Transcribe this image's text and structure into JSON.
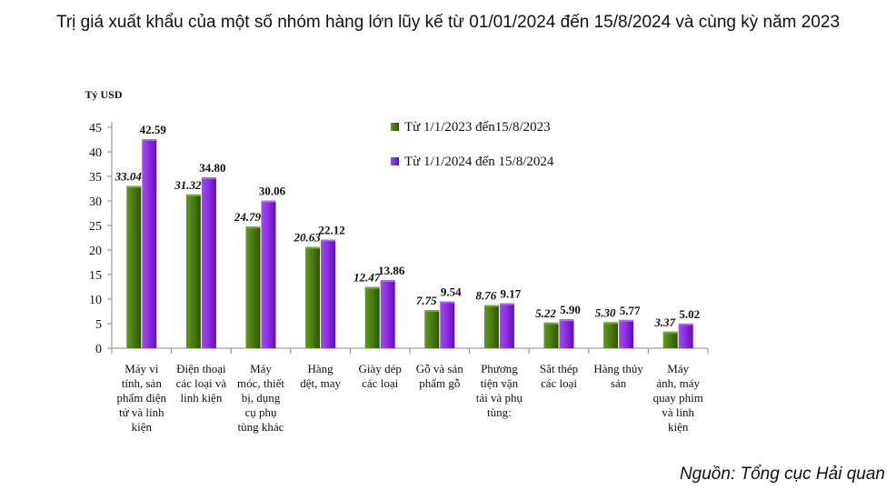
{
  "title": "Trị giá xuất khẩu của một số nhóm hàng lớn lũy kế từ 01/01/2024 đến 15/8/2024 và cùng kỳ năm 2023",
  "source": "Nguồn: Tổng cục Hải quan",
  "colors": {
    "series_2023": "#4e7d17",
    "series_2024": "#8b2be2"
  },
  "chart_data": {
    "type": "bar",
    "ylabel": "Tỷ USD",
    "ylim": [
      0,
      45
    ],
    "yticks": [
      0,
      5,
      10,
      15,
      20,
      25,
      30,
      35,
      40,
      45
    ],
    "grid": false,
    "legend": "top-center",
    "categories": [
      "Máy vi tính, sản phẩm điện tử và linh kiện",
      "Điện thoại các loại và linh kiện",
      "Máy móc, thiết bị, dụng cụ phụ tùng khác",
      "Hàng dệt, may",
      "Giày dép các loại",
      "Gỗ và sản phẩm gỗ",
      "Phương tiện vận tải và phụ tùng:",
      "Sắt thép các loại",
      "Hàng thủy sản",
      "Máy ảnh, máy quay phim và linh kiện"
    ],
    "category_lines": [
      [
        "Máy vi",
        "tính, sản",
        "phẩm điện",
        "tử và linh",
        "kiện"
      ],
      [
        "Điện thoại",
        "các loại và",
        "linh kiện"
      ],
      [
        "Máy",
        "móc, thiết",
        "bị, dụng",
        "cụ phụ",
        "tùng khác"
      ],
      [
        "Hàng",
        "dệt, may"
      ],
      [
        "Giày dép",
        "các loại"
      ],
      [
        "Gỗ và sản",
        "phẩm gỗ"
      ],
      [
        "Phương",
        "tiện vận",
        "tải và phụ",
        "tùng:"
      ],
      [
        "Sắt thép",
        "các loại"
      ],
      [
        "Hàng thủy",
        "sản"
      ],
      [
        "Máy",
        "ảnh, máy",
        "quay phim",
        "và linh",
        "kiện"
      ]
    ],
    "series": [
      {
        "name": "Từ 1/1/2023 đến15/8/2023",
        "values": [
          33.04,
          31.32,
          24.79,
          20.63,
          12.47,
          7.75,
          8.76,
          5.22,
          5.3,
          3.37
        ],
        "labels": [
          "33.04",
          "31.32",
          "24.79",
          "20.63",
          "12.47",
          "7.75",
          "8.76",
          "5.22",
          "5.30",
          "3.37"
        ]
      },
      {
        "name": "Từ 1/1/2024 đến 15/8/2024",
        "values": [
          42.59,
          34.8,
          30.06,
          22.12,
          13.86,
          9.54,
          9.17,
          5.9,
          5.77,
          5.02
        ],
        "labels": [
          "42.59",
          "34.80",
          "30.06",
          "22.12",
          "13.86",
          "9.54",
          "9.17",
          "5.90",
          "5.77",
          "5.02"
        ]
      }
    ]
  }
}
